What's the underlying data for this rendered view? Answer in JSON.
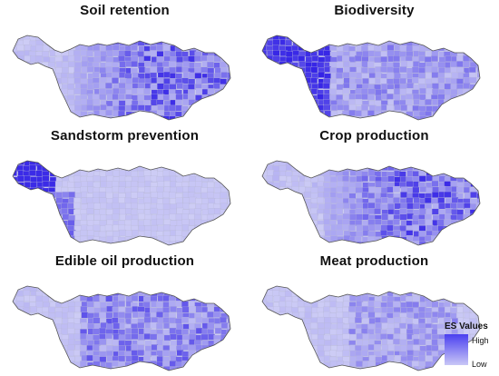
{
  "panels": [
    {
      "title": "Soil retention",
      "pattern": "east-centre-high"
    },
    {
      "title": "Biodiversity",
      "pattern": "west-high"
    },
    {
      "title": "Sandstorm prevention",
      "pattern": "far-west-only"
    },
    {
      "title": "Crop production",
      "pattern": "east-centre-high"
    },
    {
      "title": "Edible oil production",
      "pattern": "centre-east-moderate"
    },
    {
      "title": "Meat production",
      "pattern": "mostly-low"
    }
  ],
  "legend": {
    "title": "ES Values",
    "high_label": "High",
    "low_label": "Low",
    "high_color": "#4a3ff0",
    "low_color": "#c9c7f6"
  },
  "colors": {
    "base_fill": "#cfd0f4",
    "outline": "#555555"
  }
}
